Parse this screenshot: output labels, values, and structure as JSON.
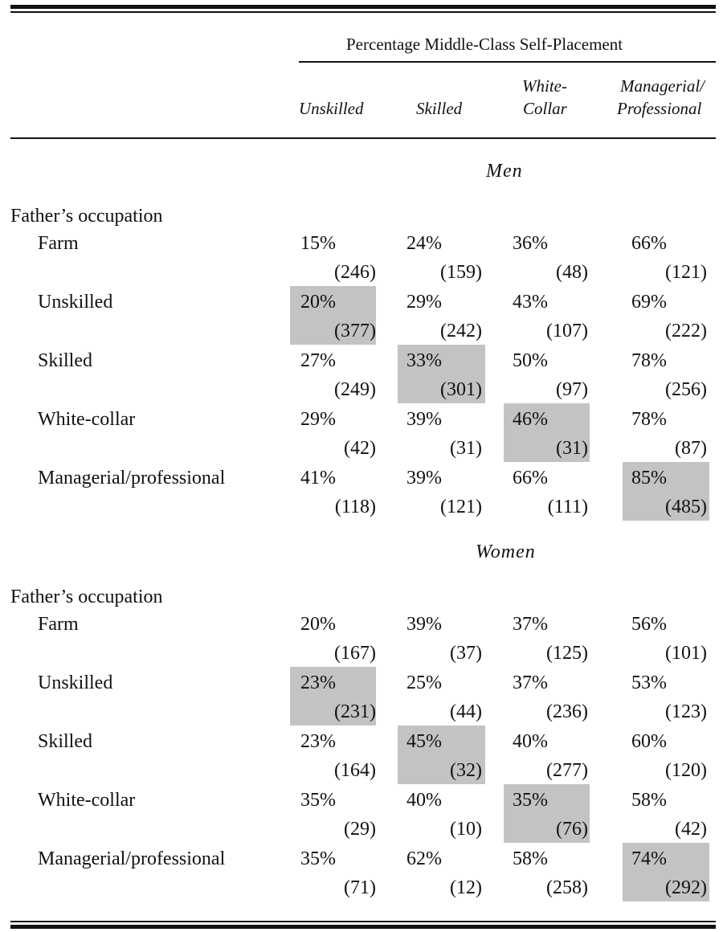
{
  "spanner": "Percentage Middle-Class Self-Placement",
  "columns": [
    {
      "line1": "",
      "line2": "Unskilled"
    },
    {
      "line1": "",
      "line2": "Skilled"
    },
    {
      "line1": "White-",
      "line2": "Collar"
    },
    {
      "line1": "Managerial/",
      "line2": "Professional"
    }
  ],
  "sections": [
    {
      "title": "Men",
      "row_group": "Father’s occupation",
      "rows": [
        {
          "label": "Farm",
          "cells": [
            {
              "pct": "15%",
              "n": "(246)"
            },
            {
              "pct": "24%",
              "n": "(159)"
            },
            {
              "pct": "36%",
              "n": "(48)"
            },
            {
              "pct": "66%",
              "n": "(121)"
            }
          ]
        },
        {
          "label": "Unskilled",
          "cells": [
            {
              "pct": "20%",
              "n": "(377)"
            },
            {
              "pct": "29%",
              "n": "(242)"
            },
            {
              "pct": "43%",
              "n": "(107)"
            },
            {
              "pct": "69%",
              "n": "(222)"
            }
          ]
        },
        {
          "label": "Skilled",
          "cells": [
            {
              "pct": "27%",
              "n": "(249)"
            },
            {
              "pct": "33%",
              "n": "(301)"
            },
            {
              "pct": "50%",
              "n": "(97)"
            },
            {
              "pct": "78%",
              "n": "(256)"
            }
          ]
        },
        {
          "label": "White-collar",
          "cells": [
            {
              "pct": "29%",
              "n": "(42)"
            },
            {
              "pct": "39%",
              "n": "(31)"
            },
            {
              "pct": "46%",
              "n": "(31)"
            },
            {
              "pct": "78%",
              "n": "(87)"
            }
          ]
        },
        {
          "label": "Managerial/professional",
          "cells": [
            {
              "pct": "41%",
              "n": "(118)"
            },
            {
              "pct": "39%",
              "n": "(121)"
            },
            {
              "pct": "66%",
              "n": "(111)"
            },
            {
              "pct": "85%",
              "n": "(485)"
            }
          ]
        }
      ]
    },
    {
      "title": "Women",
      "row_group": "Father’s occupation",
      "rows": [
        {
          "label": "Farm",
          "cells": [
            {
              "pct": "20%",
              "n": "(167)"
            },
            {
              "pct": "39%",
              "n": "(37)"
            },
            {
              "pct": "37%",
              "n": "(125)"
            },
            {
              "pct": "56%",
              "n": "(101)"
            }
          ]
        },
        {
          "label": "Unskilled",
          "cells": [
            {
              "pct": "23%",
              "n": "(231)"
            },
            {
              "pct": "25%",
              "n": "(44)"
            },
            {
              "pct": "37%",
              "n": "(236)"
            },
            {
              "pct": "53%",
              "n": "(123)"
            }
          ]
        },
        {
          "label": "Skilled",
          "cells": [
            {
              "pct": "23%",
              "n": "(164)"
            },
            {
              "pct": "45%",
              "n": "(32)"
            },
            {
              "pct": "40%",
              "n": "(277)"
            },
            {
              "pct": "60%",
              "n": "(120)"
            }
          ]
        },
        {
          "label": "White-collar",
          "cells": [
            {
              "pct": "35%",
              "n": "(29)"
            },
            {
              "pct": "40%",
              "n": "(10)"
            },
            {
              "pct": "35%",
              "n": "(76)"
            },
            {
              "pct": "58%",
              "n": "(42)"
            }
          ]
        },
        {
          "label": "Managerial/professional",
          "cells": [
            {
              "pct": "35%",
              "n": "(71)"
            },
            {
              "pct": "62%",
              "n": "(12)"
            },
            {
              "pct": "58%",
              "n": "(258)"
            },
            {
              "pct": "74%",
              "n": "(292)"
            }
          ]
        }
      ]
    }
  ],
  "colors": {
    "diagonal_shade": "#c3c3c3",
    "rule": "#111111"
  }
}
